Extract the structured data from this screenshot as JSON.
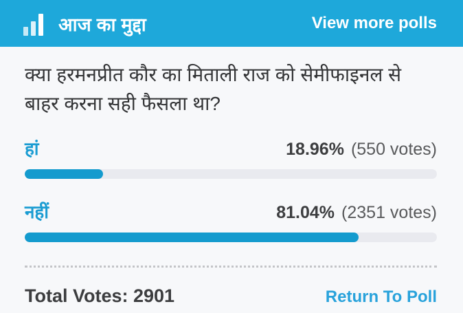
{
  "header": {
    "title": "आज का मुद्दा",
    "view_more_label": "View more polls",
    "icon": "bar-chart-icon"
  },
  "question": "क्या हरमनप्रीत कौर का मिताली राज को सेमीफाइनल से बाहर करना सही फैसला था?",
  "chart_data": {
    "type": "bar",
    "categories": [
      "हां",
      "नहीं"
    ],
    "values": [
      18.96,
      81.04
    ],
    "votes": [
      550,
      2351
    ],
    "title": "क्या हरमनप्रीत कौर का मिताली राज को सेमीफाइनल से बाहर करना सही फैसला था?",
    "total_votes": 2901,
    "unit": "%"
  },
  "options": [
    {
      "label": "हां",
      "percent": "18.96%",
      "votes": "(550 votes)",
      "percent_value": 18.96
    },
    {
      "label": "नहीं",
      "percent": "81.04%",
      "votes": "(2351 votes)",
      "percent_value": 81.04
    }
  ],
  "footer": {
    "total_votes_label": "Total Votes: 2901",
    "return_label": "Return To Poll"
  },
  "colors": {
    "header_bg": "#1ea8da",
    "accent_blue": "#1a9cd2",
    "bar_fill": "#149bce",
    "bar_track": "#e9eaef",
    "body_bg": "#f7f8fa",
    "text_dark": "#3c3d3f",
    "votes_gray": "#58595b"
  }
}
